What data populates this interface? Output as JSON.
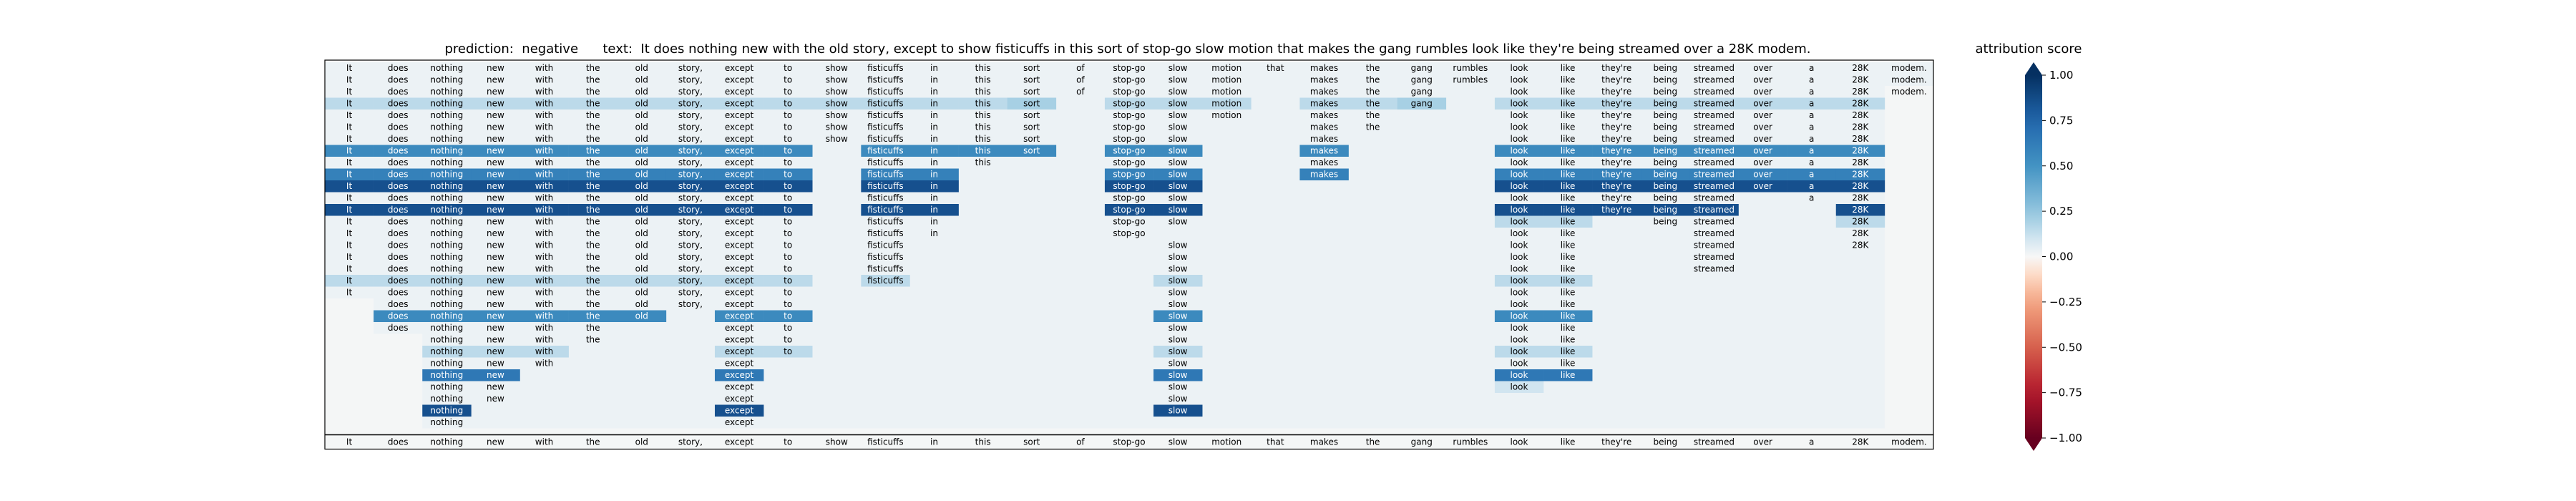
{
  "title": {
    "prediction_label": "prediction:",
    "prediction": "negative",
    "text_label": "text:",
    "text": "It does nothing new with the old story, except to show fisticuffs in this sort of stop-go slow motion that makes the gang rumbles look like they're being streamed over a 28K modem."
  },
  "colorbar": {
    "title": "attribution score",
    "ticks": [
      "1.00",
      "0.75",
      "0.50",
      "0.25",
      "0.00",
      "−0.25",
      "−0.50",
      "−0.75",
      "−1.00"
    ],
    "range": [
      -1,
      1
    ],
    "colormap": "RdBu"
  },
  "chart_data": {
    "type": "heatmap",
    "tokens": [
      "It",
      "does",
      "nothing",
      "new",
      "with",
      "the",
      "old",
      "story,",
      "except",
      "to",
      "show",
      "fisticuffs",
      "in",
      "this",
      "sort",
      "of",
      "stop-go",
      "slow",
      "motion",
      "that",
      "makes",
      "the",
      "gang",
      "rumbles",
      "look",
      "like",
      "they're",
      "being",
      "streamed",
      "over",
      "a",
      "28K",
      "modem."
    ],
    "rows": [
      [
        0,
        32,
        {}
      ],
      [
        0,
        32,
        {}
      ],
      [
        0,
        31,
        {}
      ],
      [
        0,
        31,
        {
          "0": 0.15,
          "1": 0.15,
          "2": 0.15,
          "3": 0.15,
          "4": 0.15,
          "5": 0.15,
          "6": 0.15,
          "7": 0.15,
          "8": 0.15,
          "9": 0.15,
          "10": 0.15,
          "11": 0.15,
          "12": 0.15,
          "13": 0.15,
          "14": 0.2,
          "16": 0.15,
          "17": 0.15,
          "18": 0.15,
          "20": 0.15,
          "21": 0.15,
          "22": 0.2,
          "24": 0.15,
          "25": 0.15,
          "26": 0.15,
          "27": 0.15,
          "28": 0.15,
          "29": 0.15,
          "30": 0.15,
          "31": 0.15
        }
      ],
      [
        0,
        31,
        {}
      ],
      [
        0,
        31,
        {}
      ],
      [
        0,
        31,
        {}
      ],
      [
        0,
        31,
        {
          "0": 0.55,
          "1": 0.55,
          "2": 0.55,
          "3": 0.55,
          "4": 0.55,
          "5": 0.55,
          "6": 0.55,
          "7": 0.55,
          "8": 0.55,
          "9": 0.55,
          "11": 0.55,
          "12": 0.55,
          "13": 0.55,
          "14": 0.55,
          "16": 0.55,
          "17": 0.55,
          "20": 0.55,
          "24": 0.55,
          "25": 0.55,
          "26": 0.55,
          "27": 0.55,
          "28": 0.55,
          "29": 0.55,
          "30": 0.55,
          "31": 0.55
        }
      ],
      [
        0,
        31,
        {}
      ],
      [
        0,
        31,
        {
          "0": 0.6,
          "1": 0.6,
          "2": 0.6,
          "3": 0.6,
          "4": 0.6,
          "5": 0.6,
          "6": 0.6,
          "7": 0.6,
          "8": 0.6,
          "9": 0.6,
          "11": 0.6,
          "12": 0.6,
          "16": 0.6,
          "17": 0.6,
          "20": 0.6,
          "24": 0.6,
          "25": 0.6,
          "26": 0.6,
          "27": 0.6,
          "28": 0.6,
          "29": 0.6,
          "30": 0.6,
          "31": 0.6
        }
      ],
      [
        0,
        31,
        {
          "0": 0.85,
          "1": 0.85,
          "2": 0.85,
          "3": 0.85,
          "4": 0.85,
          "5": 0.85,
          "6": 0.85,
          "7": 0.85,
          "8": 0.85,
          "9": 0.85,
          "11": 0.85,
          "12": 0.85,
          "16": 0.85,
          "17": 0.85,
          "24": 0.85,
          "25": 0.85,
          "26": 0.85,
          "27": 0.85,
          "28": 0.85,
          "29": 0.85,
          "30": 0.85,
          "31": 0.85
        }
      ],
      [
        0,
        31,
        {}
      ],
      [
        0,
        31,
        {
          "0": 0.85,
          "1": 0.85,
          "2": 0.85,
          "3": 0.85,
          "4": 0.85,
          "5": 0.85,
          "6": 0.85,
          "7": 0.85,
          "8": 0.85,
          "9": 0.85,
          "11": 0.85,
          "12": 0.85,
          "16": 0.85,
          "17": 0.85,
          "24": 0.85,
          "25": 0.85,
          "26": 0.85,
          "27": 0.85,
          "28": 0.85,
          "31": 0.85
        }
      ],
      [
        0,
        31,
        {
          "24": 0.15,
          "25": 0.15,
          "31": 0.15
        }
      ],
      [
        0,
        31,
        {}
      ],
      [
        0,
        31,
        {}
      ],
      [
        0,
        31,
        {}
      ],
      [
        0,
        31,
        {}
      ],
      [
        0,
        31,
        {
          "0": 0.15,
          "1": 0.15,
          "2": 0.15,
          "3": 0.15,
          "4": 0.15,
          "5": 0.15,
          "6": 0.15,
          "7": 0.15,
          "8": 0.15,
          "9": 0.15,
          "11": 0.15,
          "17": 0.15,
          "24": 0.15,
          "25": 0.15
        }
      ],
      [
        0,
        31,
        {}
      ],
      [
        1,
        31,
        {}
      ],
      [
        1,
        31,
        {
          "1": 0.55,
          "2": 0.55,
          "3": 0.55,
          "4": 0.55,
          "5": 0.55,
          "6": 0.55,
          "8": 0.55,
          "9": 0.55,
          "17": 0.55,
          "24": 0.55,
          "25": 0.55
        }
      ],
      [
        1,
        31,
        {}
      ],
      [
        2,
        31,
        {}
      ],
      [
        2,
        31,
        {
          "2": 0.15,
          "3": 0.15,
          "4": 0.15,
          "8": 0.15,
          "9": 0.15,
          "17": 0.15,
          "24": 0.15,
          "25": 0.15
        }
      ],
      [
        2,
        31,
        {}
      ],
      [
        2,
        31,
        {
          "2": 0.65,
          "3": 0.65,
          "8": 0.65,
          "17": 0.65,
          "24": 0.65,
          "25": 0.65
        }
      ],
      [
        2,
        31,
        {
          "24": 0.1
        }
      ],
      [
        2,
        31,
        {}
      ],
      [
        2,
        31,
        {
          "2": 0.85,
          "8": 0.85,
          "17": 0.85
        }
      ],
      [
        2,
        31,
        {}
      ]
    ],
    "row_tokens": [
      [
        0,
        1,
        2,
        3,
        4,
        5,
        6,
        7,
        8,
        9,
        10,
        11,
        12,
        13,
        14,
        15,
        16,
        17,
        18,
        19,
        20,
        21,
        22,
        23,
        24,
        25,
        26,
        27,
        28,
        29,
        30,
        31,
        32
      ],
      [
        0,
        1,
        2,
        3,
        4,
        5,
        6,
        7,
        8,
        9,
        10,
        11,
        12,
        13,
        14,
        15,
        16,
        17,
        18,
        20,
        21,
        22,
        23,
        24,
        25,
        26,
        27,
        28,
        29,
        30,
        31,
        32
      ],
      [
        0,
        1,
        2,
        3,
        4,
        5,
        6,
        7,
        8,
        9,
        10,
        11,
        12,
        13,
        14,
        15,
        16,
        17,
        18,
        20,
        21,
        22,
        24,
        25,
        26,
        27,
        28,
        29,
        30,
        31,
        32
      ],
      [
        0,
        1,
        2,
        3,
        4,
        5,
        6,
        7,
        8,
        9,
        10,
        11,
        12,
        13,
        14,
        16,
        17,
        18,
        20,
        21,
        22,
        24,
        25,
        26,
        27,
        28,
        29,
        30,
        31
      ],
      [
        0,
        1,
        2,
        3,
        4,
        5,
        6,
        7,
        8,
        9,
        10,
        11,
        12,
        13,
        14,
        16,
        17,
        18,
        20,
        21,
        24,
        25,
        26,
        27,
        28,
        29,
        30,
        31
      ],
      [
        0,
        1,
        2,
        3,
        4,
        5,
        6,
        7,
        8,
        9,
        10,
        11,
        12,
        13,
        14,
        16,
        17,
        20,
        21,
        24,
        25,
        26,
        27,
        28,
        29,
        30,
        31
      ],
      [
        0,
        1,
        2,
        3,
        4,
        5,
        6,
        7,
        8,
        9,
        10,
        11,
        12,
        13,
        14,
        16,
        17,
        20,
        24,
        25,
        26,
        27,
        28,
        29,
        30,
        31
      ],
      [
        0,
        1,
        2,
        3,
        4,
        5,
        6,
        7,
        8,
        9,
        11,
        12,
        13,
        14,
        16,
        17,
        20,
        24,
        25,
        26,
        27,
        28,
        29,
        30,
        31
      ],
      [
        0,
        1,
        2,
        3,
        4,
        5,
        6,
        7,
        8,
        9,
        11,
        12,
        13,
        16,
        17,
        20,
        24,
        25,
        26,
        27,
        28,
        29,
        30,
        31
      ],
      [
        0,
        1,
        2,
        3,
        4,
        5,
        6,
        7,
        8,
        9,
        11,
        12,
        16,
        17,
        20,
        24,
        25,
        26,
        27,
        28,
        29,
        30,
        31
      ],
      [
        0,
        1,
        2,
        3,
        4,
        5,
        6,
        7,
        8,
        9,
        11,
        12,
        16,
        17,
        24,
        25,
        26,
        27,
        28,
        29,
        30,
        31
      ],
      [
        0,
        1,
        2,
        3,
        4,
        5,
        6,
        7,
        8,
        9,
        11,
        12,
        16,
        17,
        24,
        25,
        26,
        27,
        28,
        30,
        31
      ],
      [
        0,
        1,
        2,
        3,
        4,
        5,
        6,
        7,
        8,
        9,
        11,
        12,
        16,
        17,
        24,
        25,
        26,
        27,
        28,
        31
      ],
      [
        0,
        1,
        2,
        3,
        4,
        5,
        6,
        7,
        8,
        9,
        11,
        12,
        16,
        17,
        24,
        25,
        27,
        28,
        31
      ],
      [
        0,
        1,
        2,
        3,
        4,
        5,
        6,
        7,
        8,
        9,
        11,
        12,
        16,
        24,
        25,
        28,
        31
      ],
      [
        0,
        1,
        2,
        3,
        4,
        5,
        6,
        7,
        8,
        9,
        11,
        17,
        24,
        25,
        28,
        31
      ],
      [
        0,
        1,
        2,
        3,
        4,
        5,
        6,
        7,
        8,
        9,
        11,
        17,
        24,
        25,
        28
      ],
      [
        0,
        1,
        2,
        3,
        4,
        5,
        6,
        7,
        8,
        9,
        11,
        17,
        24,
        25,
        28
      ],
      [
        0,
        1,
        2,
        3,
        4,
        5,
        6,
        7,
        8,
        9,
        11,
        17,
        24,
        25
      ],
      [
        0,
        1,
        2,
        3,
        4,
        5,
        6,
        7,
        8,
        9,
        17,
        24,
        25
      ],
      [
        1,
        2,
        3,
        4,
        5,
        6,
        7,
        8,
        9,
        17,
        24,
        25
      ],
      [
        1,
        2,
        3,
        4,
        5,
        6,
        8,
        9,
        17,
        24,
        25
      ],
      [
        1,
        2,
        3,
        4,
        5,
        8,
        9,
        17,
        24,
        25
      ],
      [
        2,
        3,
        4,
        5,
        8,
        9,
        17,
        24,
        25
      ],
      [
        2,
        3,
        4,
        8,
        9,
        17,
        24,
        25
      ],
      [
        2,
        3,
        4,
        8,
        17,
        24,
        25
      ],
      [
        2,
        3,
        8,
        17,
        24,
        25
      ],
      [
        2,
        3,
        8,
        17,
        24
      ],
      [
        2,
        3,
        8,
        17
      ],
      [
        2,
        8,
        17
      ],
      [
        2,
        8
      ]
    ]
  }
}
